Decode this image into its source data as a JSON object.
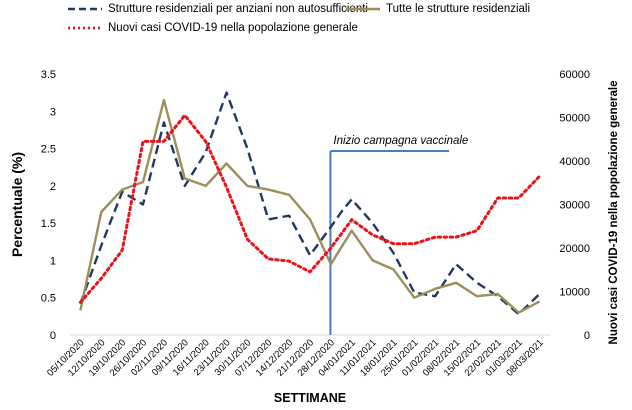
{
  "legend": [
    {
      "label": "Strutture residenziali per anziani non autosufficienti",
      "color": "#1f3864",
      "dash": "dashed"
    },
    {
      "label": "Tutte le strutture residenziali",
      "color": "#9c8f5a",
      "dash": "solid"
    },
    {
      "label": "Nuovi casi COVID-19 nella popolazione generale",
      "color": "#e8141b",
      "dash": "dotted"
    }
  ],
  "chart_data": {
    "type": "line",
    "title": "",
    "xlabel": "SETTIMANE",
    "ylabel": "Percentuale (%)",
    "y2label": "Nuovi casi COVID-19 nella popolazione generale",
    "ylim": [
      0,
      3.5
    ],
    "y2lim": [
      0,
      60000
    ],
    "yticks": [
      "0",
      "0.5",
      "1",
      "1.5",
      "2",
      "2.5",
      "3",
      "3.5"
    ],
    "y2ticks": [
      "0",
      "10000",
      "20000",
      "30000",
      "40000",
      "50000",
      "60000"
    ],
    "grid": false,
    "legend_position": "top",
    "categories": [
      "05/10/2020",
      "12/10/2020",
      "19/10/2020",
      "26/10/2020",
      "02/11/2020",
      "09/11/2020",
      "16/11/2020",
      "23/11/2020",
      "30/11/2020",
      "07/12/2020",
      "14/12/2020",
      "21/12/2020",
      "28/12/2020",
      "04/01/2021",
      "11/01/2021",
      "18/01/2021",
      "25/01/2021",
      "01/02/2021",
      "08/02/2021",
      "15/02/2021",
      "22/02/2021",
      "01/03/2021",
      "08/03/2021"
    ],
    "series": [
      {
        "name": "Strutture residenziali per anziani non autosufficienti",
        "axis": "left",
        "color": "#1f3864",
        "style": "dashed",
        "x": [
          0,
          1,
          2,
          3,
          4,
          5,
          6,
          7,
          8,
          9,
          10,
          11,
          12,
          12.5,
          13,
          14,
          15,
          16,
          17,
          18,
          19,
          20,
          21,
          22
        ],
        "values": [
          0.42,
          1.2,
          1.92,
          1.75,
          2.85,
          2.0,
          2.45,
          3.25,
          2.5,
          1.55,
          1.6,
          1.07,
          1.45,
          1.65,
          1.82,
          1.5,
          1.1,
          0.57,
          0.52,
          0.95,
          0.7,
          0.52,
          0.28,
          0.55
        ]
      },
      {
        "name": "Tutte le strutture residenziali",
        "axis": "left",
        "color": "#9c8f5a",
        "style": "solid",
        "x": [
          0,
          1,
          2,
          3,
          4,
          5,
          6,
          7,
          8,
          9,
          10,
          11,
          12,
          13,
          14,
          15,
          16,
          17,
          18,
          19,
          20,
          21,
          22
        ],
        "values": [
          0.33,
          1.65,
          1.95,
          2.05,
          3.15,
          2.1,
          2.0,
          2.3,
          2.0,
          1.95,
          1.88,
          1.55,
          0.95,
          1.4,
          1.0,
          0.88,
          0.5,
          0.62,
          0.7,
          0.52,
          0.55,
          0.3,
          0.45
        ]
      },
      {
        "name": "Nuovi casi COVID-19 nella popolazione generale",
        "axis": "right",
        "color": "#e8141b",
        "style": "dotted",
        "x": [
          0,
          1,
          2,
          3,
          4,
          5,
          6,
          7,
          8,
          9,
          10,
          11,
          12,
          13,
          14,
          15,
          16,
          17,
          18,
          19,
          20,
          21,
          22
        ],
        "values": [
          7500,
          13000,
          19500,
          44500,
          44500,
          50500,
          44500,
          34000,
          22000,
          17500,
          17000,
          14500,
          20000,
          26500,
          23000,
          21000,
          21000,
          22500,
          22500,
          24000,
          31500,
          31500,
          36500
        ]
      }
    ],
    "annotations": [
      {
        "text": "Inizio campagna vaccinale",
        "x": 12
      }
    ]
  }
}
